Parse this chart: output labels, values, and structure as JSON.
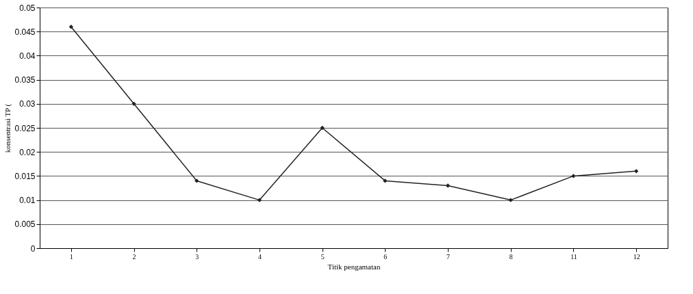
{
  "chart_data": {
    "type": "line",
    "xlabel": "Titik pengamatan",
    "ylabel": "konsentrasi TP (",
    "categories": [
      "1",
      "2",
      "3",
      "4",
      "5",
      "6",
      "7",
      "8",
      "11",
      "12"
    ],
    "series": [
      {
        "color": "#222222",
        "values": [
          0.046,
          0.03,
          0.014,
          0.01,
          0.025,
          0.014,
          0.013,
          0.01,
          0.015,
          0.016
        ]
      }
    ],
    "ylim": [
      0,
      0.05
    ],
    "yticks": [
      0,
      0.005,
      0.01,
      0.015,
      0.02,
      0.025,
      0.03,
      0.035,
      0.04,
      0.045,
      0.05
    ],
    "grid": "y",
    "marker": "diamond",
    "line_style": "solid",
    "legend": false
  }
}
